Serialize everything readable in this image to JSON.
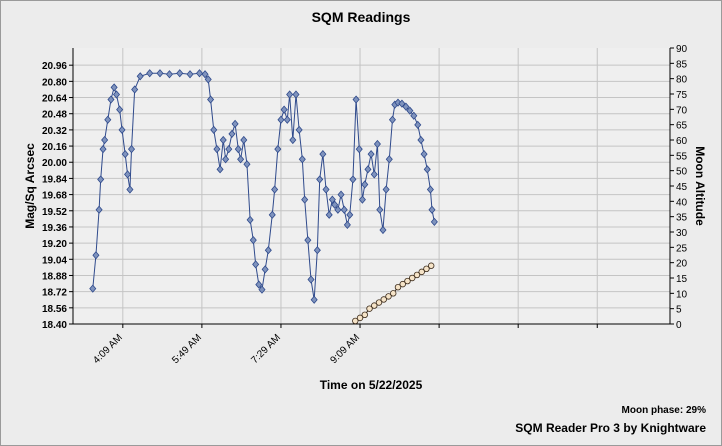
{
  "chart_data": {
    "type": "line",
    "title": "SQM Readings",
    "ylabel": "Mag/Sq Arcsec",
    "y2label": "Moon Altitude",
    "xlabel": "Time on 5/22/2025",
    "footer_note": "Moon phase: 29%",
    "footer_credit": "SQM Reader Pro 3 by Knightware",
    "grid": true,
    "xlim": [
      186,
      941
    ],
    "xticks": [
      {
        "value": 249,
        "label": "4:09 AM"
      },
      {
        "value": 349,
        "label": "5:49 AM"
      },
      {
        "value": 449,
        "label": "7:29 AM"
      },
      {
        "value": 549,
        "label": "9:09 AM"
      },
      {
        "value": 649,
        "label": null
      },
      {
        "value": 749,
        "label": null
      },
      {
        "value": 849,
        "label": null
      }
    ],
    "ylim": [
      18.4,
      21.13
    ],
    "yticks": [
      {
        "value": 18.4,
        "label": "18.40"
      },
      18.56,
      18.72,
      18.88,
      19.04,
      {
        "value": 19.2,
        "label": "19.20"
      },
      19.36,
      19.52,
      19.68,
      19.84,
      {
        "value": 20.0,
        "label": "20.00"
      },
      20.16,
      20.32,
      20.48,
      20.64,
      {
        "value": 20.8,
        "label": "20.80"
      },
      20.96
    ],
    "y2lim": [
      0,
      90
    ],
    "y2ticks": [
      0,
      5,
      10,
      15,
      20,
      25,
      30,
      35,
      40,
      45,
      50,
      55,
      60,
      65,
      70,
      75,
      80,
      85,
      90
    ],
    "series": [
      {
        "color": "#2f4a8c",
        "marker": "diamond",
        "marker_color": "#7f93bd",
        "x": [
          211,
          215,
          219,
          221,
          224,
          226,
          230,
          234,
          238,
          241,
          245,
          248,
          252,
          255,
          258,
          260,
          264,
          271,
          283,
          296,
          308,
          321,
          334,
          346,
          353,
          357,
          360,
          364,
          368,
          372,
          376,
          379,
          383,
          387,
          391,
          395,
          398,
          402,
          406,
          410,
          414,
          417,
          421,
          425,
          429,
          433,
          438,
          441,
          445,
          449,
          453,
          457,
          460,
          464,
          468,
          472,
          476,
          479,
          483,
          487,
          491,
          495,
          498,
          502,
          506,
          510,
          514,
          517,
          521,
          525,
          529,
          533,
          536,
          540,
          544,
          548,
          552,
          555,
          559,
          563,
          567,
          571,
          574,
          578,
          582,
          586,
          590,
          593,
          597,
          602,
          607,
          612,
          617,
          622,
          626,
          630,
          634,
          638,
          640,
          643
        ],
        "values": [
          18.75,
          19.08,
          19.53,
          19.83,
          20.13,
          20.22,
          20.42,
          20.62,
          20.74,
          20.67,
          20.52,
          20.32,
          20.08,
          19.88,
          19.73,
          20.13,
          20.72,
          20.85,
          20.88,
          20.88,
          20.87,
          20.88,
          20.87,
          20.88,
          20.87,
          20.82,
          20.62,
          20.32,
          20.13,
          19.93,
          20.22,
          20.03,
          20.13,
          20.28,
          20.38,
          20.13,
          20.03,
          20.22,
          19.98,
          19.43,
          19.23,
          18.99,
          18.79,
          18.74,
          18.94,
          19.13,
          19.48,
          19.73,
          20.13,
          20.42,
          20.52,
          20.42,
          20.67,
          20.22,
          20.67,
          20.32,
          20.03,
          19.63,
          19.23,
          18.84,
          18.64,
          19.13,
          19.83,
          20.08,
          19.73,
          19.48,
          19.63,
          19.58,
          19.53,
          19.68,
          19.53,
          19.38,
          19.48,
          19.83,
          20.62,
          20.13,
          19.63,
          19.78,
          19.93,
          20.08,
          19.88,
          20.18,
          19.53,
          19.33,
          19.73,
          20.03,
          20.42,
          20.57,
          20.59,
          20.58,
          20.55,
          20.51,
          20.46,
          20.37,
          20.22,
          20.08,
          19.93,
          19.73,
          19.53,
          19.41
        ]
      },
      {
        "color": "#3a2a1a",
        "marker": "circle",
        "marker_color": "#f6e4c8",
        "axis": "y2",
        "x": [
          543,
          549,
          555,
          561,
          567,
          573,
          579,
          585,
          591,
          597,
          603,
          609,
          615,
          621,
          627,
          633,
          639
        ],
        "values": [
          1,
          2,
          3,
          5,
          6,
          7,
          8,
          9,
          10,
          12,
          13,
          14,
          15,
          16,
          17,
          18,
          19
        ]
      }
    ]
  }
}
